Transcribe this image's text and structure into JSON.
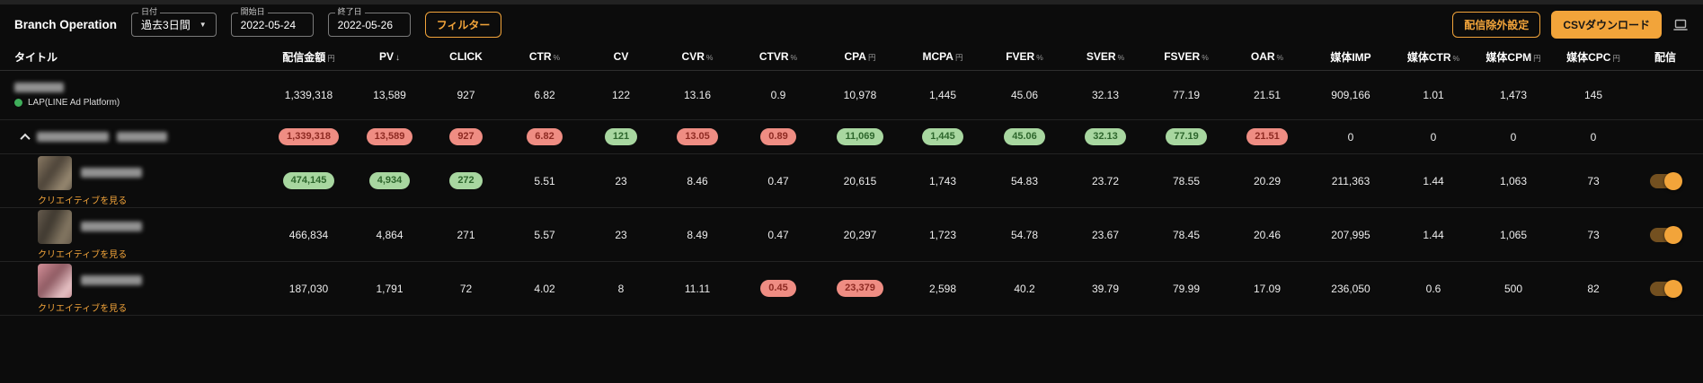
{
  "page": {
    "title": "Branch Operation"
  },
  "filters": {
    "date": {
      "label": "日付",
      "value": "過去3日間"
    },
    "start": {
      "label": "開始日",
      "value": "2022-05-24"
    },
    "end": {
      "label": "終了日",
      "value": "2022-05-26"
    },
    "filter_button": "フィルター"
  },
  "actions": {
    "exclusion_button": "配信除外設定",
    "csv_button": "CSVダウンロード"
  },
  "colors": {
    "accent": "#f2a43a",
    "pill_red_bg": "#ef8d83",
    "pill_red_text": "#8e2a22",
    "pill_green_bg": "#a8d7a0",
    "pill_green_text": "#2d662c",
    "background": "#0c0c0c"
  },
  "table": {
    "creative_link_label": "クリエイティブを見る",
    "columns": [
      {
        "label": "タイトル",
        "unit": ""
      },
      {
        "label": "配信金額",
        "unit": "円"
      },
      {
        "label": "PV",
        "unit": "",
        "sort": "↓"
      },
      {
        "label": "CLICK",
        "unit": ""
      },
      {
        "label": "CTR",
        "unit": "%"
      },
      {
        "label": "CV",
        "unit": ""
      },
      {
        "label": "CVR",
        "unit": "%"
      },
      {
        "label": "CTVR",
        "unit": "%"
      },
      {
        "label": "CPA",
        "unit": "円"
      },
      {
        "label": "MCPA",
        "unit": "円"
      },
      {
        "label": "FVER",
        "unit": "%"
      },
      {
        "label": "SVER",
        "unit": "%"
      },
      {
        "label": "FSVER",
        "unit": "%"
      },
      {
        "label": "OAR",
        "unit": "%"
      },
      {
        "label": "媒体IMP",
        "unit": ""
      },
      {
        "label": "媒体CTR",
        "unit": "%"
      },
      {
        "label": "媒体CPM",
        "unit": "円"
      },
      {
        "label": "媒体CPC",
        "unit": "円"
      },
      {
        "label": "配信",
        "unit": ""
      }
    ],
    "rows": [
      {
        "type": "platform",
        "platform_label": "LAP(LINE Ad Platform)",
        "toggle": false,
        "values": [
          {
            "text": "1,339,318"
          },
          {
            "text": "13,589"
          },
          {
            "text": "927"
          },
          {
            "text": "6.82"
          },
          {
            "text": "122"
          },
          {
            "text": "13.16"
          },
          {
            "text": "0.9"
          },
          {
            "text": "10,978"
          },
          {
            "text": "1,445"
          },
          {
            "text": "45.06"
          },
          {
            "text": "32.13"
          },
          {
            "text": "77.19"
          },
          {
            "text": "21.51"
          },
          {
            "text": "909,166"
          },
          {
            "text": "1.01"
          },
          {
            "text": "1,473"
          },
          {
            "text": "145"
          }
        ]
      },
      {
        "type": "group",
        "toggle": false,
        "values": [
          {
            "text": "1,339,318",
            "pill": "red"
          },
          {
            "text": "13,589",
            "pill": "red"
          },
          {
            "text": "927",
            "pill": "red"
          },
          {
            "text": "6.82",
            "pill": "red"
          },
          {
            "text": "121",
            "pill": "green"
          },
          {
            "text": "13.05",
            "pill": "red"
          },
          {
            "text": "0.89",
            "pill": "red"
          },
          {
            "text": "11,069",
            "pill": "green"
          },
          {
            "text": "1,445",
            "pill": "green"
          },
          {
            "text": "45.06",
            "pill": "green"
          },
          {
            "text": "32.13",
            "pill": "green"
          },
          {
            "text": "77.19",
            "pill": "green"
          },
          {
            "text": "21.51",
            "pill": "red"
          },
          {
            "text": "0"
          },
          {
            "text": "0"
          },
          {
            "text": "0"
          },
          {
            "text": "0"
          }
        ]
      },
      {
        "type": "creative",
        "thumb": "thumb-a",
        "toggle": true,
        "values": [
          {
            "text": "474,145",
            "pill": "green"
          },
          {
            "text": "4,934",
            "pill": "green"
          },
          {
            "text": "272",
            "pill": "green"
          },
          {
            "text": "5.51"
          },
          {
            "text": "23"
          },
          {
            "text": "8.46"
          },
          {
            "text": "0.47"
          },
          {
            "text": "20,615"
          },
          {
            "text": "1,743"
          },
          {
            "text": "54.83"
          },
          {
            "text": "23.72"
          },
          {
            "text": "78.55"
          },
          {
            "text": "20.29"
          },
          {
            "text": "211,363"
          },
          {
            "text": "1.44"
          },
          {
            "text": "1,063"
          },
          {
            "text": "73"
          }
        ]
      },
      {
        "type": "creative",
        "thumb": "thumb-b",
        "toggle": true,
        "values": [
          {
            "text": "466,834"
          },
          {
            "text": "4,864"
          },
          {
            "text": "271"
          },
          {
            "text": "5.57"
          },
          {
            "text": "23"
          },
          {
            "text": "8.49"
          },
          {
            "text": "0.47"
          },
          {
            "text": "20,297"
          },
          {
            "text": "1,723"
          },
          {
            "text": "54.78"
          },
          {
            "text": "23.67"
          },
          {
            "text": "78.45"
          },
          {
            "text": "20.46"
          },
          {
            "text": "207,995"
          },
          {
            "text": "1.44"
          },
          {
            "text": "1,065"
          },
          {
            "text": "73"
          }
        ]
      },
      {
        "type": "creative",
        "thumb": "thumb-c",
        "toggle": true,
        "values": [
          {
            "text": "187,030"
          },
          {
            "text": "1,791"
          },
          {
            "text": "72"
          },
          {
            "text": "4.02"
          },
          {
            "text": "8"
          },
          {
            "text": "11.11"
          },
          {
            "text": "0.45",
            "pill": "red"
          },
          {
            "text": "23,379",
            "pill": "red"
          },
          {
            "text": "2,598"
          },
          {
            "text": "40.2"
          },
          {
            "text": "39.79"
          },
          {
            "text": "79.99"
          },
          {
            "text": "17.09"
          },
          {
            "text": "236,050"
          },
          {
            "text": "0.6"
          },
          {
            "text": "500"
          },
          {
            "text": "82"
          }
        ]
      }
    ]
  }
}
